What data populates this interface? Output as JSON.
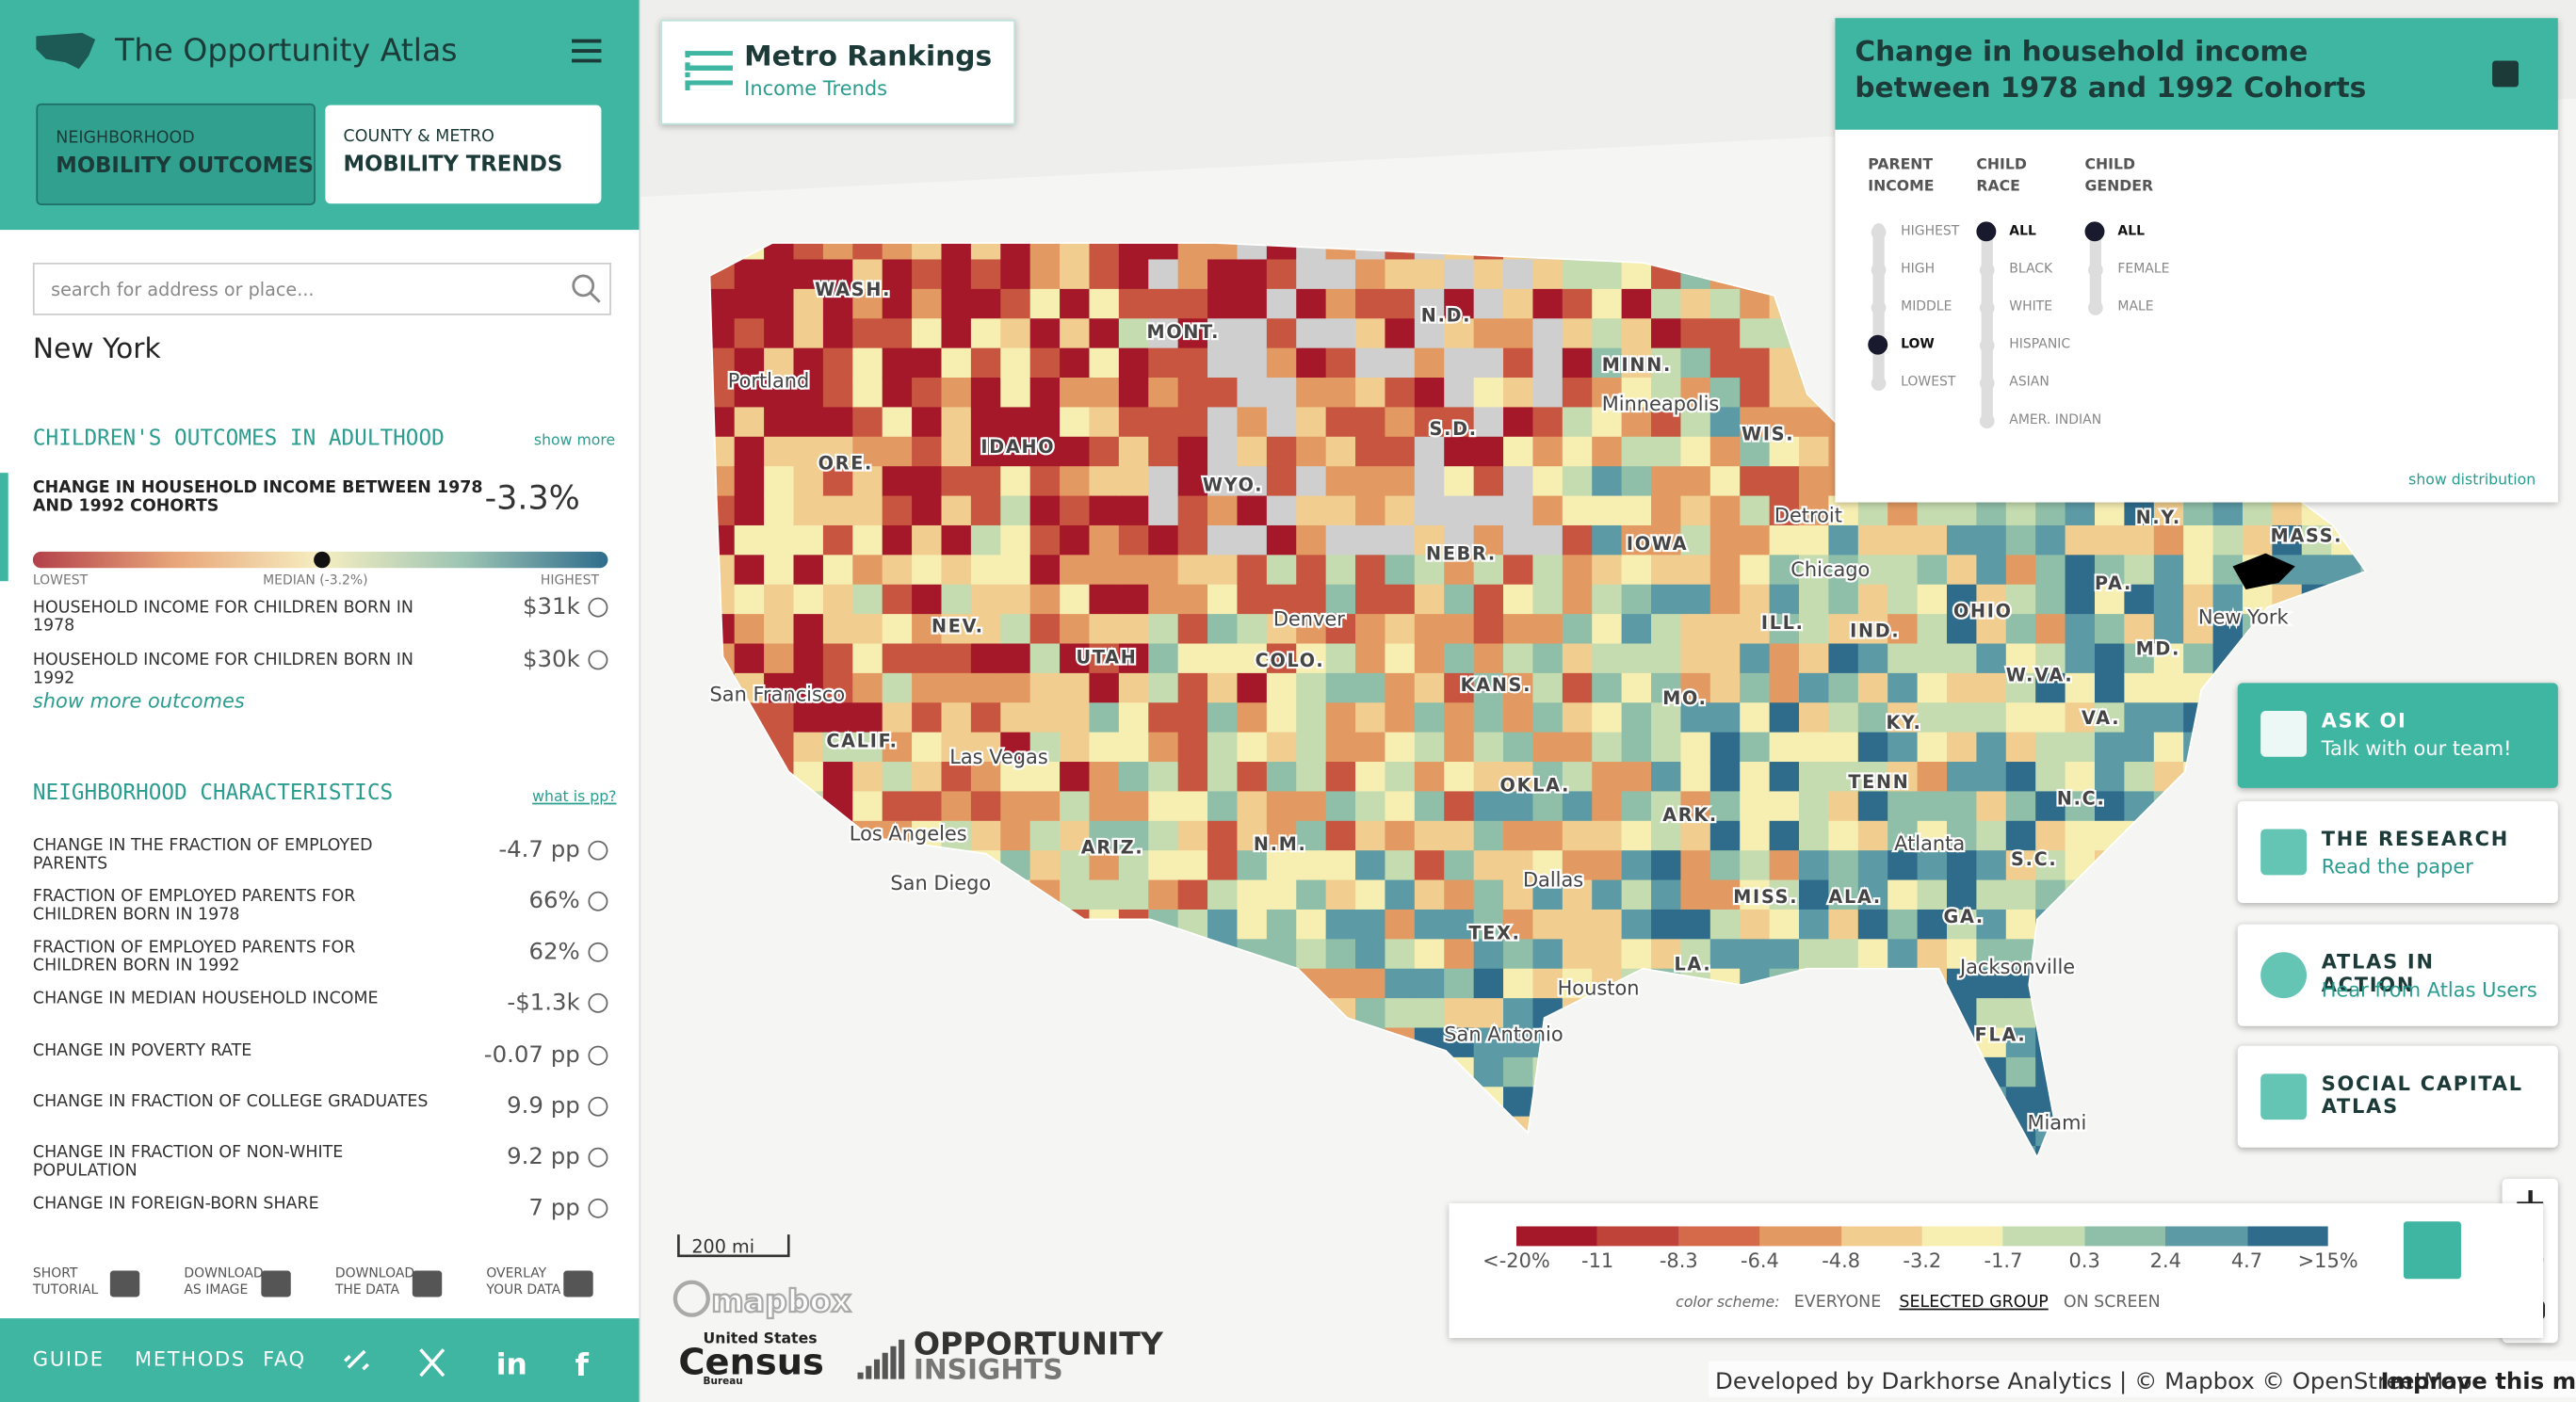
{
  "header": {
    "title": "The Opportunity Atlas",
    "tabs": [
      {
        "small": "NEIGHBORHOOD",
        "big": "MOBILITY OUTCOMES"
      },
      {
        "small": "COUNTY & METRO",
        "big": "MOBILITY TRENDS"
      }
    ]
  },
  "search": {
    "placeholder": "search for address or place..."
  },
  "place": "New York",
  "outcomes": {
    "title": "CHILDREN'S OUTCOMES IN ADULTHOOD",
    "show_more": "show more",
    "main": {
      "label": "CHANGE IN HOUSEHOLD INCOME BETWEEN 1978 AND 1992 COHORTS",
      "value": "-3.3%"
    },
    "scale": {
      "lowest": "LOWEST",
      "median": "MEDIAN (-3.2%)",
      "highest": "HIGHEST"
    },
    "rows": [
      {
        "label": "HOUSEHOLD INCOME FOR CHILDREN BORN IN 1978",
        "value": "$31k"
      },
      {
        "label": "HOUSEHOLD INCOME FOR CHILDREN BORN IN 1992",
        "value": "$30k"
      }
    ],
    "show_more_outcomes": "show more outcomes"
  },
  "characteristics": {
    "title": "NEIGHBORHOOD CHARACTERISTICS",
    "link": "what is pp?",
    "rows": [
      {
        "label": "CHANGE IN THE FRACTION OF EMPLOYED PARENTS",
        "value": "-4.7 pp"
      },
      {
        "label": "FRACTION OF EMPLOYED PARENTS FOR CHILDREN BORN IN 1978",
        "value": "66%"
      },
      {
        "label": "FRACTION OF EMPLOYED PARENTS FOR CHILDREN BORN IN 1992",
        "value": "62%"
      },
      {
        "label": "CHANGE IN MEDIAN HOUSEHOLD INCOME",
        "value": "-$1.3k"
      },
      {
        "label": "CHANGE IN POVERTY RATE",
        "value": "-0.07 pp"
      },
      {
        "label": "CHANGE IN FRACTION OF COLLEGE GRADUATES",
        "value": "9.9 pp"
      },
      {
        "label": "CHANGE IN FRACTION OF NON-WHITE POPULATION",
        "value": "9.2 pp"
      },
      {
        "label": "CHANGE IN FOREIGN-BORN SHARE",
        "value": "7 pp"
      }
    ]
  },
  "tools": [
    [
      "SHORT",
      "TUTORIAL"
    ],
    [
      "DOWNLOAD",
      "AS IMAGE"
    ],
    [
      "DOWNLOAD",
      "THE DATA"
    ],
    [
      "OVERLAY",
      "YOUR DATA"
    ]
  ],
  "footer_nav": [
    "GUIDE",
    "METHODS",
    "FAQ"
  ],
  "rankings": {
    "title": "Metro Rankings",
    "subtitle": "Income Trends"
  },
  "variable": {
    "title": "Change in household income between 1978 and 1992 Cohorts",
    "filters": [
      {
        "heading": [
          "PARENT",
          "INCOME"
        ],
        "options": [
          "HIGHEST",
          "HIGH",
          "MIDDLE",
          "LOW",
          "LOWEST"
        ],
        "selected": 3
      },
      {
        "heading": [
          "CHILD",
          "RACE"
        ],
        "options": [
          "ALL",
          "BLACK",
          "WHITE",
          "HISPANIC",
          "ASIAN",
          "AMER. INDIAN"
        ],
        "selected": 0
      },
      {
        "heading": [
          "CHILD",
          "GENDER"
        ],
        "options": [
          "ALL",
          "FEMALE",
          "MALE"
        ],
        "selected": 0
      }
    ],
    "show_distribution": "show distribution"
  },
  "side_buttons": [
    {
      "title": "ASK OI",
      "subtitle": "Talk with our team!"
    },
    {
      "title": "THE RESEARCH",
      "subtitle": "Read the paper"
    },
    {
      "title": "ATLAS IN ACTION",
      "subtitle": "Hear from Atlas Users"
    },
    {
      "title": "SOCIAL CAPITAL ATLAS",
      "subtitle": ""
    }
  ],
  "legend": {
    "labels": [
      "<-20%",
      "-11",
      "-8.3",
      "-6.4",
      "-4.8",
      "-3.2",
      "-1.7",
      "0.3",
      "2.4",
      "4.7",
      ">15%"
    ],
    "scheme_label": "color scheme:",
    "schemes": [
      "EVERYONE",
      "SELECTED GROUP",
      "ON SCREEN"
    ],
    "active_scheme": 1
  },
  "map_labels": [
    "WASH.",
    "MONT.",
    "N.D.",
    "MINN.",
    "Minneapolis",
    "Portland",
    "IDAHO",
    "ORE.",
    "WYO.",
    "S.D.",
    "WIS.",
    "Detroit",
    "N.Y.",
    "MASS.",
    "IOWA",
    "NEBR.",
    "Chicago",
    "PA.",
    "New York",
    "NEV.",
    "UTAH",
    "Denver",
    "COLO.",
    "ILL.",
    "IND.",
    "OHIO",
    "San Francisco",
    "KANS.",
    "MO.",
    "W.VA.",
    "MD.",
    "CALIF.",
    "Las Vegas",
    "KY.",
    "VA.",
    "OKLA.",
    "TENN",
    "N.C.",
    "Los Angeles",
    "ARIZ.",
    "N.M.",
    "ARK.",
    "Atlanta",
    "S.C.",
    "San Diego",
    "Dallas",
    "MISS.",
    "ALA.",
    "GA.",
    "TEX.",
    "LA.",
    "Jacksonville",
    "Houston",
    "San Antonio",
    "FLA.",
    "Miami"
  ],
  "scale_bar": "200 mi",
  "mapbox": "mapbox",
  "census": [
    "United States",
    "Census",
    "Bureau"
  ],
  "insights": [
    "OPPORTUNITY",
    "INSIGHTS"
  ],
  "attribution": {
    "credits": "Developed by Darkhorse Analytics | © Mapbox © OpenStreetMap",
    "improve": "Improve this map"
  }
}
